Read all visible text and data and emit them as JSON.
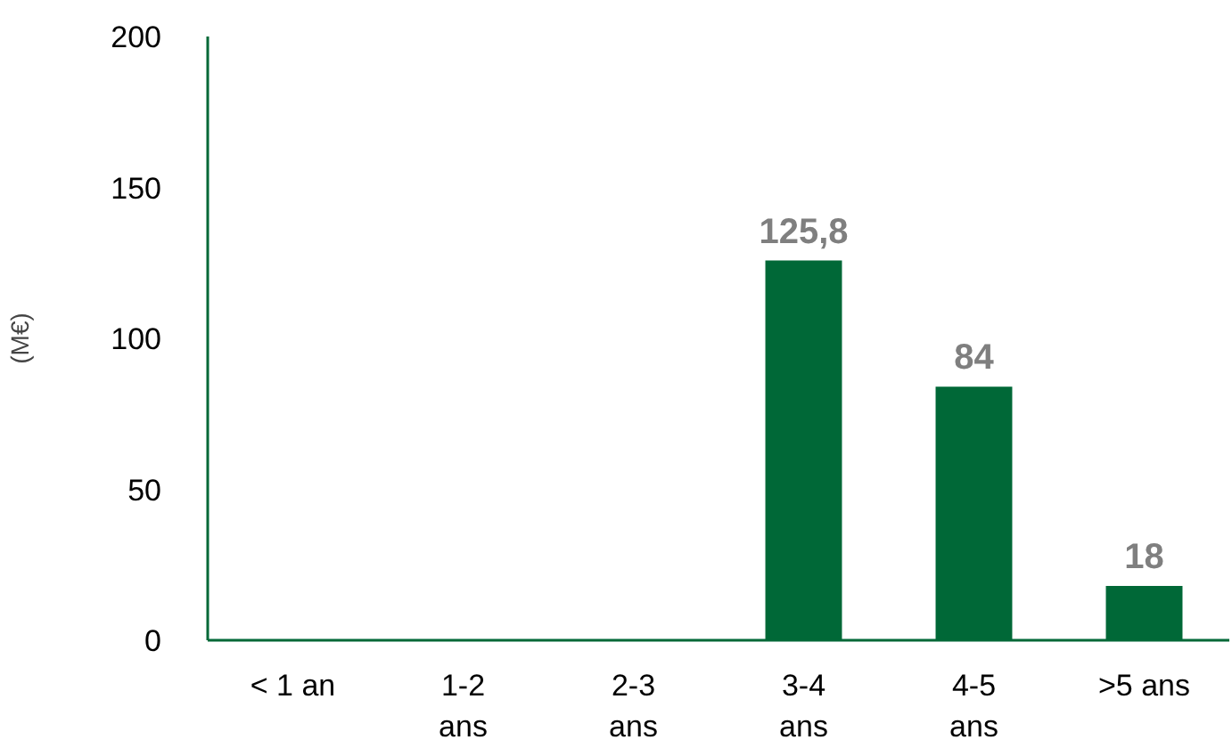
{
  "chart_data": {
    "type": "bar",
    "ylabel": "(M€)",
    "categories": [
      "< 1 an",
      "1-2 ans",
      "2-3 ans",
      "3-4 ans",
      "4-5 ans",
      ">5 ans"
    ],
    "values": [
      0,
      0,
      0,
      125.8,
      84,
      18
    ],
    "value_labels": [
      null,
      null,
      null,
      "125,8",
      "84",
      "18"
    ],
    "color": "#006837",
    "ylim": [
      0,
      200
    ],
    "yticks": [
      0,
      50,
      100,
      150,
      200
    ],
    "grid": false
  }
}
